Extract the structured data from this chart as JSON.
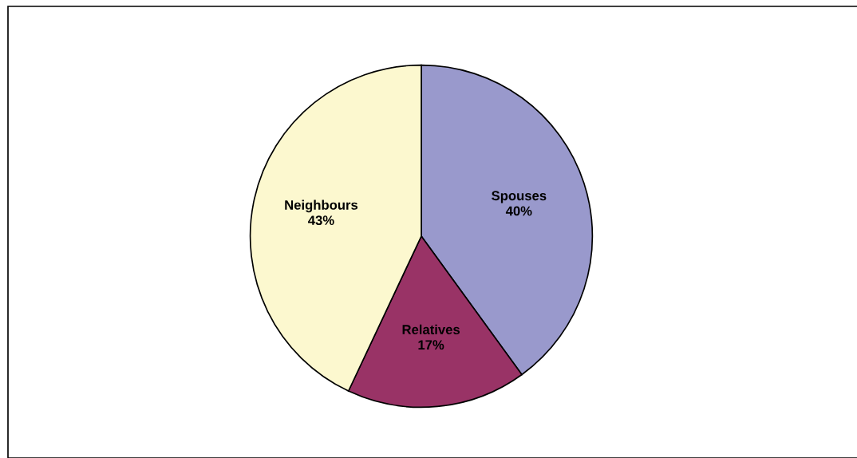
{
  "chart_data": {
    "type": "pie",
    "categories": [
      "Spouses",
      "Relatives",
      "Neighbours"
    ],
    "values": [
      40,
      17,
      43
    ],
    "value_labels": [
      "40%",
      "17%",
      "43%"
    ],
    "colors": [
      "#9999cc",
      "#993366",
      "#fcf8cf"
    ],
    "legend": false
  }
}
